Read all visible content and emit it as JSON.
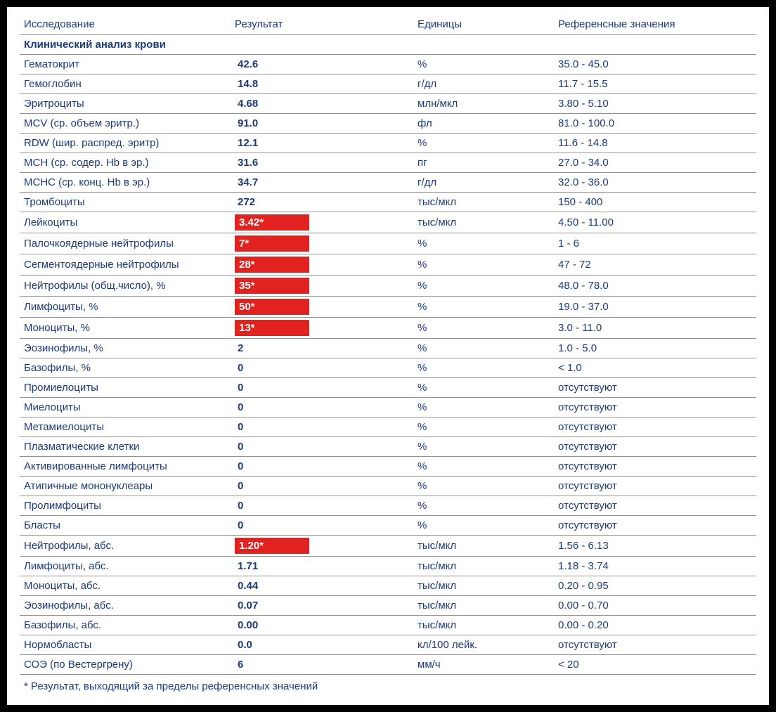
{
  "columns": {
    "name": "Исследование",
    "result": "Результат",
    "units": "Единицы",
    "reference": "Референсные значения"
  },
  "section_title": "Клинический анализ крови",
  "footnote": "* Результат, выходящий за пределы референсных значений",
  "colors": {
    "text_primary": "#1a3a7a",
    "row_border": "#5aa8b0",
    "abnormal_bg": "#e2221f",
    "abnormal_text": "#ffffff",
    "page_bg": "#ffffff",
    "outer_bg": "#000000"
  },
  "rows": [
    {
      "name": "Гематокрит",
      "result": "42.6",
      "units": "%",
      "reference": "35.0 - 45.0",
      "abnormal": false
    },
    {
      "name": "Гемоглобин",
      "result": "14.8",
      "units": "г/дл",
      "reference": "11.7 - 15.5",
      "abnormal": false
    },
    {
      "name": "Эритроциты",
      "result": "4.68",
      "units": "млн/мкл",
      "reference": "3.80 - 5.10",
      "abnormal": false
    },
    {
      "name": "MCV (ср. объем эритр.)",
      "result": "91.0",
      "units": "фл",
      "reference": "81.0 - 100.0",
      "abnormal": false
    },
    {
      "name": "RDW (шир. распред. эритр)",
      "result": "12.1",
      "units": "%",
      "reference": "11.6 - 14.8",
      "abnormal": false
    },
    {
      "name": "MCH (ср. содер. Hb в эр.)",
      "result": "31.6",
      "units": "пг",
      "reference": "27.0 - 34.0",
      "abnormal": false
    },
    {
      "name": "MCHC (ср. конц. Hb в эр.)",
      "result": "34.7",
      "units": "г/дл",
      "reference": "32.0 - 36.0",
      "abnormal": false
    },
    {
      "name": "Тромбоциты",
      "result": "272",
      "units": "тыс/мкл",
      "reference": "150 - 400",
      "abnormal": false
    },
    {
      "name": "Лейкоциты",
      "result": "3.42*",
      "units": "тыс/мкл",
      "reference": "4.50 - 11.00",
      "abnormal": true
    },
    {
      "name": "Палочкоядерные нейтрофилы",
      "result": "7*",
      "units": "%",
      "reference": "1 - 6",
      "abnormal": true
    },
    {
      "name": "Сегментоядерные нейтрофилы",
      "result": "28*",
      "units": "%",
      "reference": "47 - 72",
      "abnormal": true
    },
    {
      "name": "Нейтрофилы (общ.число), %",
      "result": "35*",
      "units": "%",
      "reference": "48.0 - 78.0",
      "abnormal": true
    },
    {
      "name": "Лимфоциты, %",
      "result": "50*",
      "units": "%",
      "reference": "19.0 - 37.0",
      "abnormal": true
    },
    {
      "name": "Моноциты, %",
      "result": "13*",
      "units": "%",
      "reference": "3.0 - 11.0",
      "abnormal": true
    },
    {
      "name": "Эозинофилы, %",
      "result": "2",
      "units": "%",
      "reference": "1.0 - 5.0",
      "abnormal": false
    },
    {
      "name": "Базофилы, %",
      "result": "0",
      "units": "%",
      "reference": "< 1.0",
      "abnormal": false
    },
    {
      "name": "Промиелоциты",
      "result": "0",
      "units": "%",
      "reference": "отсутствуют",
      "abnormal": false
    },
    {
      "name": "Миелоциты",
      "result": "0",
      "units": "%",
      "reference": "отсутствуют",
      "abnormal": false
    },
    {
      "name": "Метамиелоциты",
      "result": "0",
      "units": "%",
      "reference": "отсутствуют",
      "abnormal": false
    },
    {
      "name": "Плазматические клетки",
      "result": "0",
      "units": "%",
      "reference": "отсутствуют",
      "abnormal": false
    },
    {
      "name": "Активированные лимфоциты",
      "result": "0",
      "units": "%",
      "reference": "отсутствуют",
      "abnormal": false
    },
    {
      "name": "Атипичные мононуклеары",
      "result": "0",
      "units": "%",
      "reference": "отсутствуют",
      "abnormal": false
    },
    {
      "name": "Пролимфоциты",
      "result": "0",
      "units": "%",
      "reference": "отсутствуют",
      "abnormal": false
    },
    {
      "name": "Бласты",
      "result": "0",
      "units": "%",
      "reference": "отсутствуют",
      "abnormal": false
    },
    {
      "name": "Нейтрофилы, абс.",
      "result": "1.20*",
      "units": "тыс/мкл",
      "reference": "1.56 - 6.13",
      "abnormal": true
    },
    {
      "name": "Лимфоциты, абс.",
      "result": "1.71",
      "units": "тыс/мкл",
      "reference": "1.18 - 3.74",
      "abnormal": false
    },
    {
      "name": "Моноциты, абс.",
      "result": "0.44",
      "units": "тыс/мкл",
      "reference": "0.20 - 0.95",
      "abnormal": false
    },
    {
      "name": "Эозинофилы, абс.",
      "result": "0.07",
      "units": "тыс/мкл",
      "reference": "0.00 - 0.70",
      "abnormal": false
    },
    {
      "name": "Базофилы, абс.",
      "result": "0.00",
      "units": "тыс/мкл",
      "reference": "0.00 - 0.20",
      "abnormal": false
    },
    {
      "name": "Нормобласты",
      "result": "0.0",
      "units": "кл/100 лейк.",
      "reference": "отсутствуют",
      "abnormal": false
    },
    {
      "name": "СОЭ (по Вестергрену)",
      "result": "6",
      "units": "мм/ч",
      "reference": "< 20",
      "abnormal": false
    }
  ]
}
